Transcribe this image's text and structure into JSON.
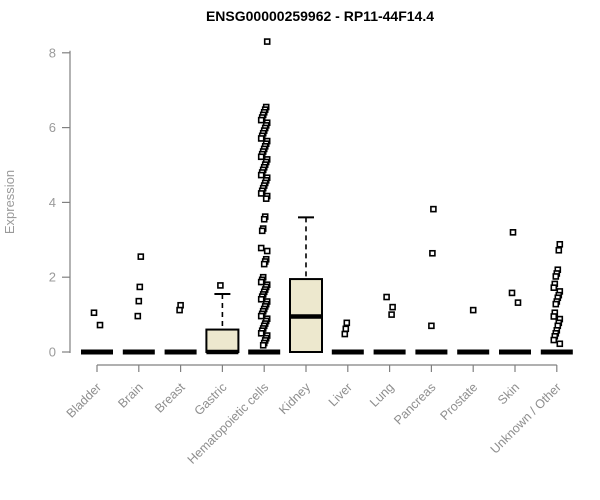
{
  "chart_data": {
    "type": "boxplot",
    "title": "ENSG00000259962 - RP11-44F14.4",
    "ylabel": "Expression",
    "xlabel": "",
    "ylim": [
      0,
      8.5
    ],
    "yticks": [
      0,
      2,
      4,
      6,
      8
    ],
    "grid": false,
    "legend": "none",
    "box_fill_color": "#EDE8CE",
    "axis_color": "#808080",
    "tick_label_color": "#9a9a9a",
    "categories": [
      "Bladder",
      "Brain",
      "Breast",
      "Gastric",
      "Hematopoietic cells",
      "Kidney",
      "Liver",
      "Lung",
      "Pancreas",
      "Prostate",
      "Skin",
      "Unknown / Other"
    ],
    "boxes": [
      {
        "category": "Bladder",
        "q1": 0,
        "median": 0,
        "q3": 0,
        "whisker_low": 0,
        "whisker_high": 0,
        "outliers": [
          1.05,
          0.72
        ]
      },
      {
        "category": "Brain",
        "q1": 0,
        "median": 0,
        "q3": 0,
        "whisker_low": 0,
        "whisker_high": 0,
        "outliers": [
          2.55,
          1.74,
          1.36,
          0.96
        ]
      },
      {
        "category": "Breast",
        "q1": 0,
        "median": 0,
        "q3": 0,
        "whisker_low": 0,
        "whisker_high": 0,
        "outliers": [
          1.25,
          1.12
        ]
      },
      {
        "category": "Gastric",
        "q1": 0,
        "median": 0,
        "q3": 0.6,
        "whisker_low": 0,
        "whisker_high": 1.55,
        "outliers": [
          1.78
        ]
      },
      {
        "category": "Hematopoietic cells",
        "q1": 0,
        "median": 0,
        "q3": 0,
        "whisker_low": 0,
        "whisker_high": 0,
        "outliers": [
          8.3,
          6.55,
          6.48,
          6.41,
          6.34,
          6.27,
          6.2,
          6.13,
          6.06,
          5.99,
          5.92,
          5.85,
          5.78,
          5.71,
          5.64,
          5.57,
          5.5,
          5.43,
          5.36,
          5.29,
          5.22,
          5.15,
          5.08,
          5.01,
          4.94,
          4.87,
          4.8,
          4.73,
          4.66,
          4.59,
          4.52,
          4.45,
          4.38,
          4.31,
          4.24,
          4.17,
          4.1,
          3.62,
          3.55,
          3.3,
          3.24,
          2.78,
          2.7,
          2.48,
          2.42,
          2.35,
          2.0,
          1.93,
          1.87,
          1.8,
          1.74,
          1.67,
          1.61,
          1.54,
          1.48,
          1.41,
          1.35,
          1.28,
          1.22,
          1.15,
          1.09,
          1.02,
          0.96,
          0.89,
          0.83,
          0.76,
          0.7,
          0.63,
          0.57,
          0.5,
          0.44,
          0.37,
          0.31,
          0.24,
          0.18
        ]
      },
      {
        "category": "Kidney",
        "q1": 0,
        "median": 0.95,
        "q3": 1.95,
        "whisker_low": 0,
        "whisker_high": 3.6,
        "outliers": []
      },
      {
        "category": "Liver",
        "q1": 0,
        "median": 0,
        "q3": 0,
        "whisker_low": 0,
        "whisker_high": 0,
        "outliers": [
          0.78,
          0.62,
          0.48
        ]
      },
      {
        "category": "Lung",
        "q1": 0,
        "median": 0,
        "q3": 0,
        "whisker_low": 0,
        "whisker_high": 0,
        "outliers": [
          1.47,
          1.2,
          1.0
        ]
      },
      {
        "category": "Pancreas",
        "q1": 0,
        "median": 0,
        "q3": 0,
        "whisker_low": 0,
        "whisker_high": 0,
        "outliers": [
          3.82,
          2.64,
          0.7
        ]
      },
      {
        "category": "Prostate",
        "q1": 0,
        "median": 0,
        "q3": 0,
        "whisker_low": 0,
        "whisker_high": 0,
        "outliers": [
          1.12
        ]
      },
      {
        "category": "Skin",
        "q1": 0,
        "median": 0,
        "q3": 0,
        "whisker_low": 0,
        "whisker_high": 0,
        "outliers": [
          3.2,
          1.58,
          1.32
        ]
      },
      {
        "category": "Unknown / Other",
        "q1": 0,
        "median": 0,
        "q3": 0,
        "whisker_low": 0,
        "whisker_high": 0,
        "outliers": [
          2.88,
          2.72,
          2.2,
          2.1,
          2.02,
          1.82,
          1.72,
          1.62,
          1.52,
          1.45,
          1.35,
          1.28,
          1.05,
          0.95,
          0.88,
          0.78,
          0.7,
          0.58,
          0.5,
          0.42,
          0.32,
          0.22
        ]
      }
    ]
  }
}
